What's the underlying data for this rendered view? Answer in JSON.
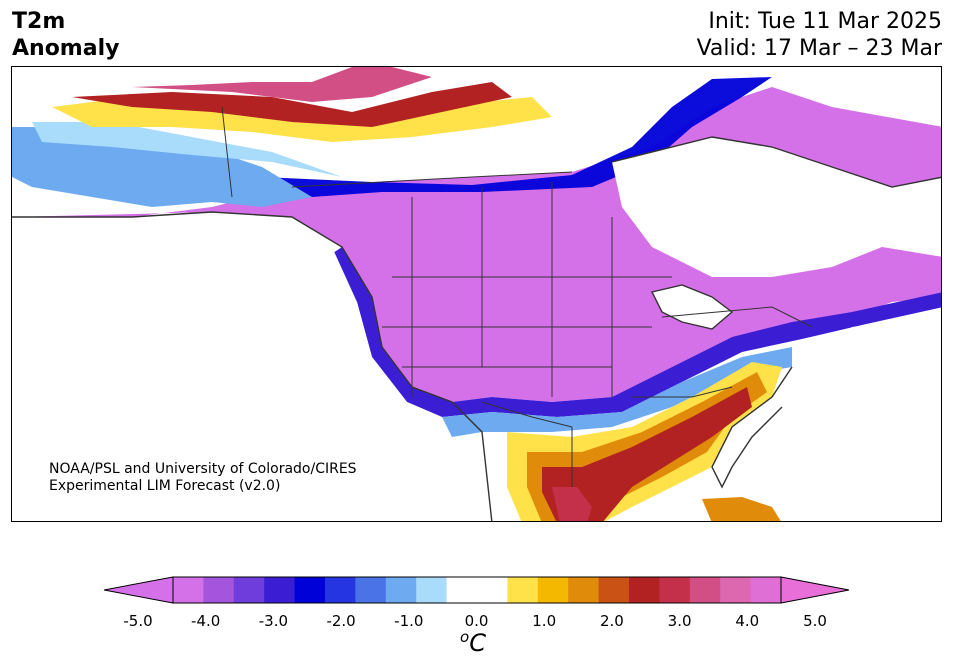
{
  "title": {
    "line1": "T2m",
    "line2": "Anomaly"
  },
  "dates": {
    "init": "Init: Tue 11 Mar 2025",
    "valid": "Valid: 17 Mar – 23 Mar"
  },
  "credit": {
    "line1": "NOAA/PSL and University of Colorado/CIRES",
    "line2": "Experimental LIM Forecast (v2.0)"
  },
  "colorbar": {
    "unit_sup": "o",
    "unit_main": "C",
    "ticks": [
      "-5.0",
      "-4.0",
      "-3.0",
      "-2.0",
      "-1.0",
      "0.0",
      "1.0",
      "2.0",
      "3.0",
      "4.0",
      "5.0"
    ],
    "colors": [
      "#d571e8",
      "#a355dd",
      "#6e3ddb",
      "#3b1ed4",
      "#0000d9",
      "#2536e0",
      "#4a73e8",
      "#6eaaf0",
      "#a9dbfa",
      "#ffffff",
      "#ffffff",
      "#ffe24a",
      "#f5b800",
      "#e08c0a",
      "#c95214",
      "#b22222",
      "#c43049",
      "#d24f85",
      "#dd68b0",
      "#e06fd5"
    ],
    "extend_low_color": "#d571e8",
    "extend_high_color": "#e86fd7"
  },
  "map": {
    "colors": {
      "strong_cold": "#d571e8",
      "cold_mid": "#6e3ddb",
      "cold_blue": "#0000d9",
      "cool_light": "#6eaaf0",
      "cool_pale": "#a9dbfa",
      "neutral": "#ffffff",
      "warm_yellow": "#ffe24a",
      "warm_orange": "#e08c0a",
      "warm_red": "#b22222",
      "warm_pink": "#d24f85",
      "border": "#333333"
    }
  }
}
